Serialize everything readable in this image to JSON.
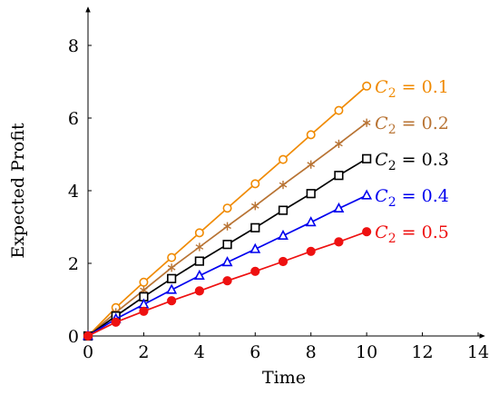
{
  "chart_data": {
    "type": "line",
    "xlabel": "Time",
    "ylabel": "Expected Profit",
    "xlim": [
      0,
      14
    ],
    "ylim": [
      0,
      9
    ],
    "xticks": [
      0,
      2,
      4,
      6,
      8,
      10,
      12,
      14
    ],
    "yticks": [
      0,
      2,
      4,
      6,
      8
    ],
    "grid": false,
    "x": [
      0,
      1,
      2,
      3,
      4,
      5,
      6,
      7,
      8,
      9,
      10
    ],
    "series": [
      {
        "name": "C_2 = 0.1",
        "label_var": "C",
        "label_sub": "2",
        "label_rest": " = 0.1",
        "color": "#F08A00",
        "marker": "circle-open",
        "values": [
          0,
          0.78,
          1.48,
          2.16,
          2.84,
          3.52,
          4.19,
          4.86,
          5.54,
          6.21,
          6.88
        ]
      },
      {
        "name": "C_2 = 0.2",
        "label_var": "C",
        "label_sub": "2",
        "label_rest": " = 0.2",
        "color": "#B87333",
        "marker": "star",
        "values": [
          0,
          0.65,
          1.26,
          1.88,
          2.45,
          3.02,
          3.58,
          4.16,
          4.72,
          5.29,
          5.87
        ]
      },
      {
        "name": "C_2 = 0.3",
        "label_var": "C",
        "label_sub": "2",
        "label_rest": " = 0.3",
        "color": "#000000",
        "marker": "square-open",
        "values": [
          0,
          0.55,
          1.08,
          1.58,
          2.06,
          2.52,
          2.98,
          3.46,
          3.92,
          4.42,
          4.88
        ]
      },
      {
        "name": "C_2 = 0.4",
        "label_var": "C",
        "label_sub": "2",
        "label_rest": " = 0.4",
        "color": "#0000EE",
        "marker": "triangle-open",
        "values": [
          0,
          0.47,
          0.87,
          1.27,
          1.66,
          2.03,
          2.39,
          2.76,
          3.13,
          3.51,
          3.87
        ]
      },
      {
        "name": "C_2 = 0.5",
        "label_var": "C",
        "label_sub": "2",
        "label_rest": " = 0.5",
        "color": "#EE1111",
        "marker": "circle-filled",
        "values": [
          0,
          0.38,
          0.68,
          0.97,
          1.24,
          1.52,
          1.78,
          2.05,
          2.33,
          2.59,
          2.87
        ]
      }
    ]
  }
}
